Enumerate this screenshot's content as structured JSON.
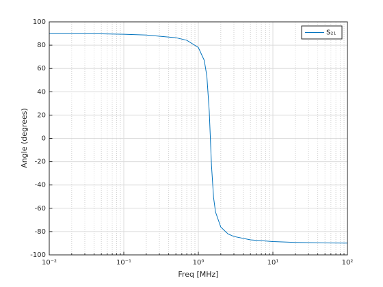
{
  "chart_data": {
    "type": "line",
    "xlabel": "Freq [MHz]",
    "ylabel": "Angle (degrees)",
    "xscale": "log",
    "grid": true,
    "minor_grid": true,
    "legend": "upper right",
    "xlim": [
      0.01,
      100
    ],
    "ylim": [
      -100,
      100
    ],
    "xticks": [
      {
        "value": 0.01,
        "label": "10⁻²"
      },
      {
        "value": 0.1,
        "label": "10⁻¹"
      },
      {
        "value": 1,
        "label": "10⁰"
      },
      {
        "value": 10,
        "label": "10¹"
      },
      {
        "value": 100,
        "label": "10²"
      }
    ],
    "yticks": [
      -100,
      -80,
      -60,
      -40,
      -20,
      0,
      20,
      40,
      60,
      80,
      100
    ],
    "x": [
      0.01,
      0.02,
      0.05,
      0.1,
      0.2,
      0.5,
      0.7,
      1,
      1.2,
      1.3,
      1.4,
      1.45,
      1.5,
      1.6,
      1.7,
      2,
      2.5,
      3,
      5,
      10,
      20,
      50,
      100
    ],
    "series": [
      {
        "name": "S₂₁",
        "color": "#0072bd",
        "values": [
          89.9,
          89.9,
          89.7,
          89.4,
          88.7,
          86.4,
          84.2,
          78.0,
          67.0,
          53.6,
          23.5,
          0,
          -22.8,
          -50.7,
          -63.2,
          -76.1,
          -82.0,
          -84.2,
          -87.1,
          -88.6,
          -89.3,
          -89.7,
          -89.9
        ]
      }
    ]
  }
}
